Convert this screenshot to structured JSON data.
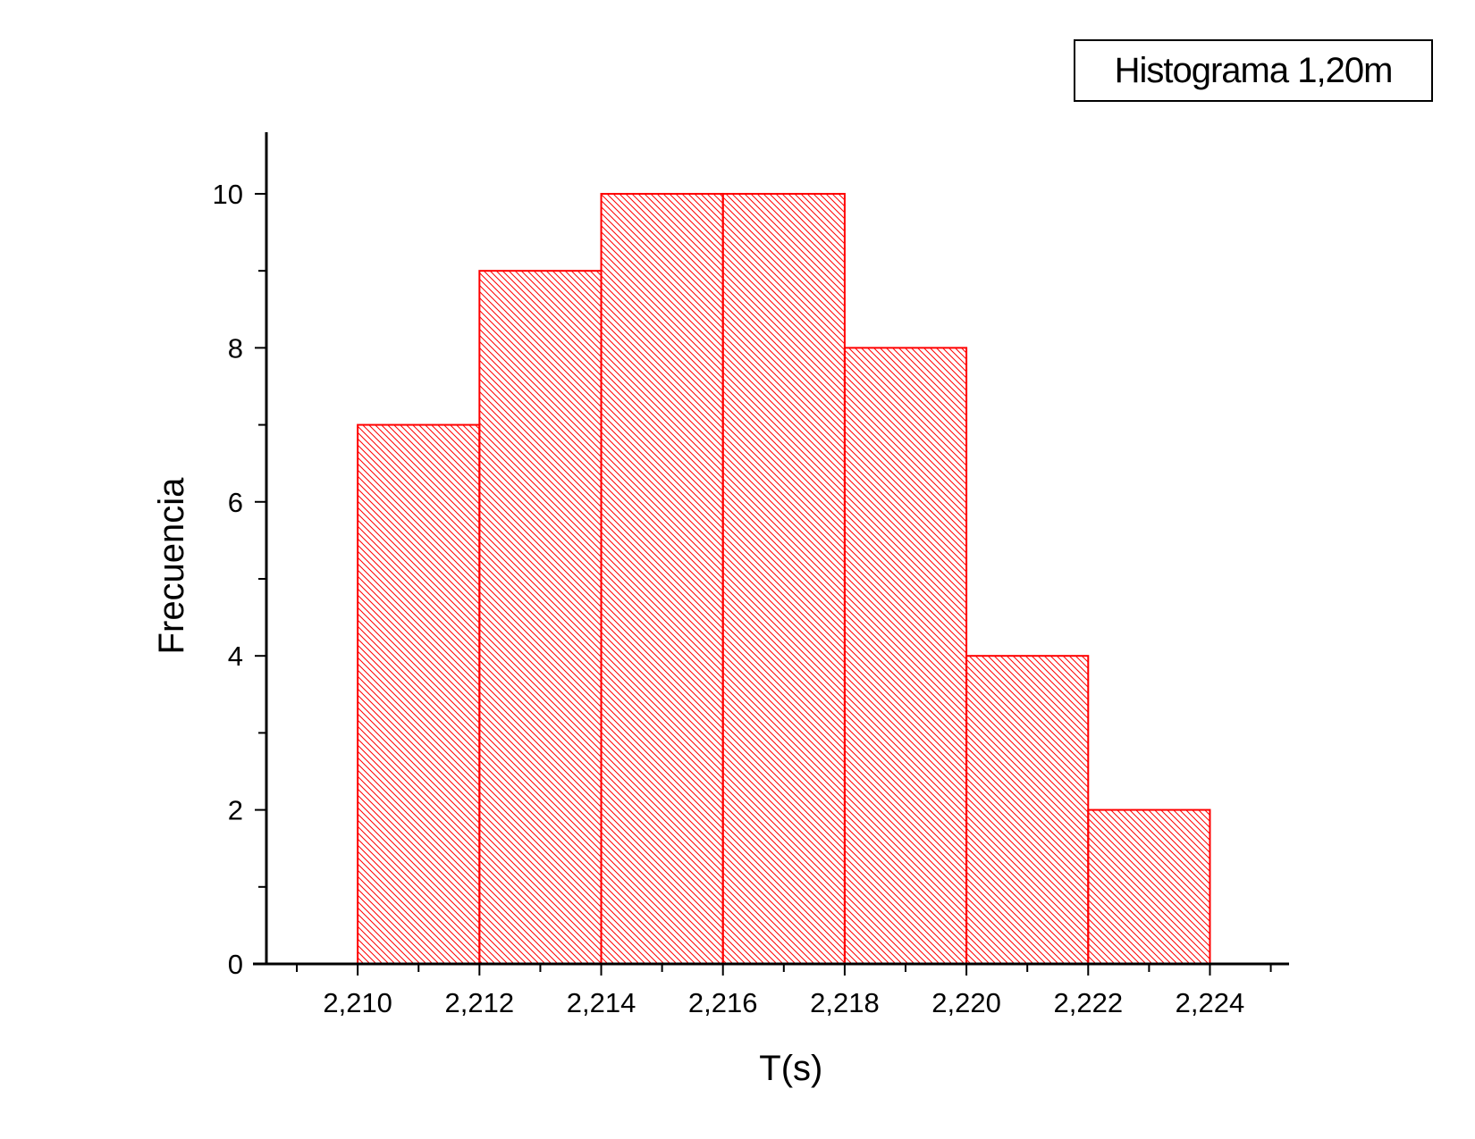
{
  "chart_data": {
    "type": "bar",
    "title": "Histograma 1,20m",
    "xlabel": "T(s)",
    "ylabel": "Frecuencia",
    "bins": [
      {
        "start": 2.21,
        "end": 2.212,
        "count": 7
      },
      {
        "start": 2.212,
        "end": 2.214,
        "count": 9
      },
      {
        "start": 2.214,
        "end": 2.216,
        "count": 10
      },
      {
        "start": 2.216,
        "end": 2.218,
        "count": 10
      },
      {
        "start": 2.218,
        "end": 2.22,
        "count": 8
      },
      {
        "start": 2.22,
        "end": 2.222,
        "count": 4
      },
      {
        "start": 2.222,
        "end": 2.224,
        "count": 2
      }
    ],
    "xlim": [
      2.2085,
      2.2253
    ],
    "ylim": [
      0,
      10.8
    ],
    "x_tick_labels": [
      "2,210",
      "2,212",
      "2,214",
      "2,216",
      "2,218",
      "2,220",
      "2,222",
      "2,224"
    ],
    "x_tick_values": [
      2.21,
      2.212,
      2.214,
      2.216,
      2.218,
      2.22,
      2.222,
      2.224
    ],
    "y_tick_labels": [
      "0",
      "2",
      "4",
      "6",
      "8",
      "10"
    ],
    "y_tick_values": [
      0,
      2,
      4,
      6,
      8,
      10
    ],
    "bar_color": "#ff0000",
    "hatch": "diagonal",
    "grid": false
  }
}
